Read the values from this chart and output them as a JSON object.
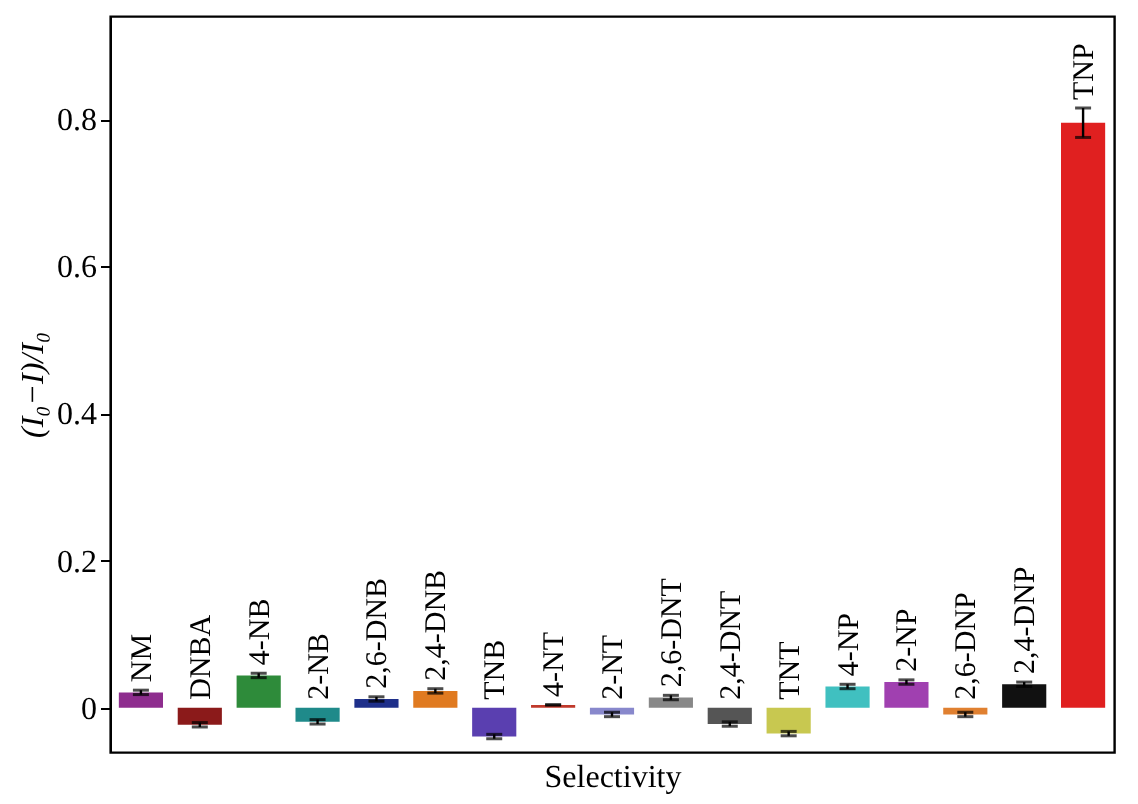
{
  "chart_data": {
    "type": "bar",
    "xlabel": "Selectivity",
    "ylabel": "(I₀−I)/I₀",
    "categories": [
      "NM",
      "DNBA",
      "4-NB",
      "2-NB",
      "2,6-DNB",
      "2,4-DNB",
      "TNB",
      "4-NT",
      "2-NT",
      "2,6-DNT",
      "2,4-DNT",
      "TNT",
      "4-NP",
      "2-NP",
      "2,6-DNP",
      "2,4-DNP",
      "TNP"
    ],
    "values": [
      0.021,
      -0.023,
      0.044,
      -0.019,
      0.012,
      0.023,
      -0.039,
      0.004,
      -0.009,
      0.014,
      -0.022,
      -0.035,
      0.029,
      0.035,
      -0.009,
      0.032,
      0.795
    ],
    "errors": [
      0.003,
      0.003,
      0.003,
      0.003,
      0.003,
      0.003,
      0.003,
      null,
      0.003,
      0.003,
      0.003,
      0.003,
      0.003,
      0.003,
      0.003,
      0.003,
      0.02
    ],
    "colors": [
      "#8e2d8e",
      "#8b1a1a",
      "#2e8b3a",
      "#1f8a8a",
      "#1e2f8a",
      "#e07a20",
      "#5a3fb0",
      "#c0392b",
      "#8888cc",
      "#888888",
      "#555555",
      "#c8c850",
      "#40c0c0",
      "#a040b0",
      "#e08030",
      "#111111",
      "#e02020"
    ],
    "ylim": [
      -0.06,
      0.94
    ],
    "yticks": [
      0,
      0.2,
      0.4,
      0.6,
      0.8
    ],
    "grid": false
  }
}
